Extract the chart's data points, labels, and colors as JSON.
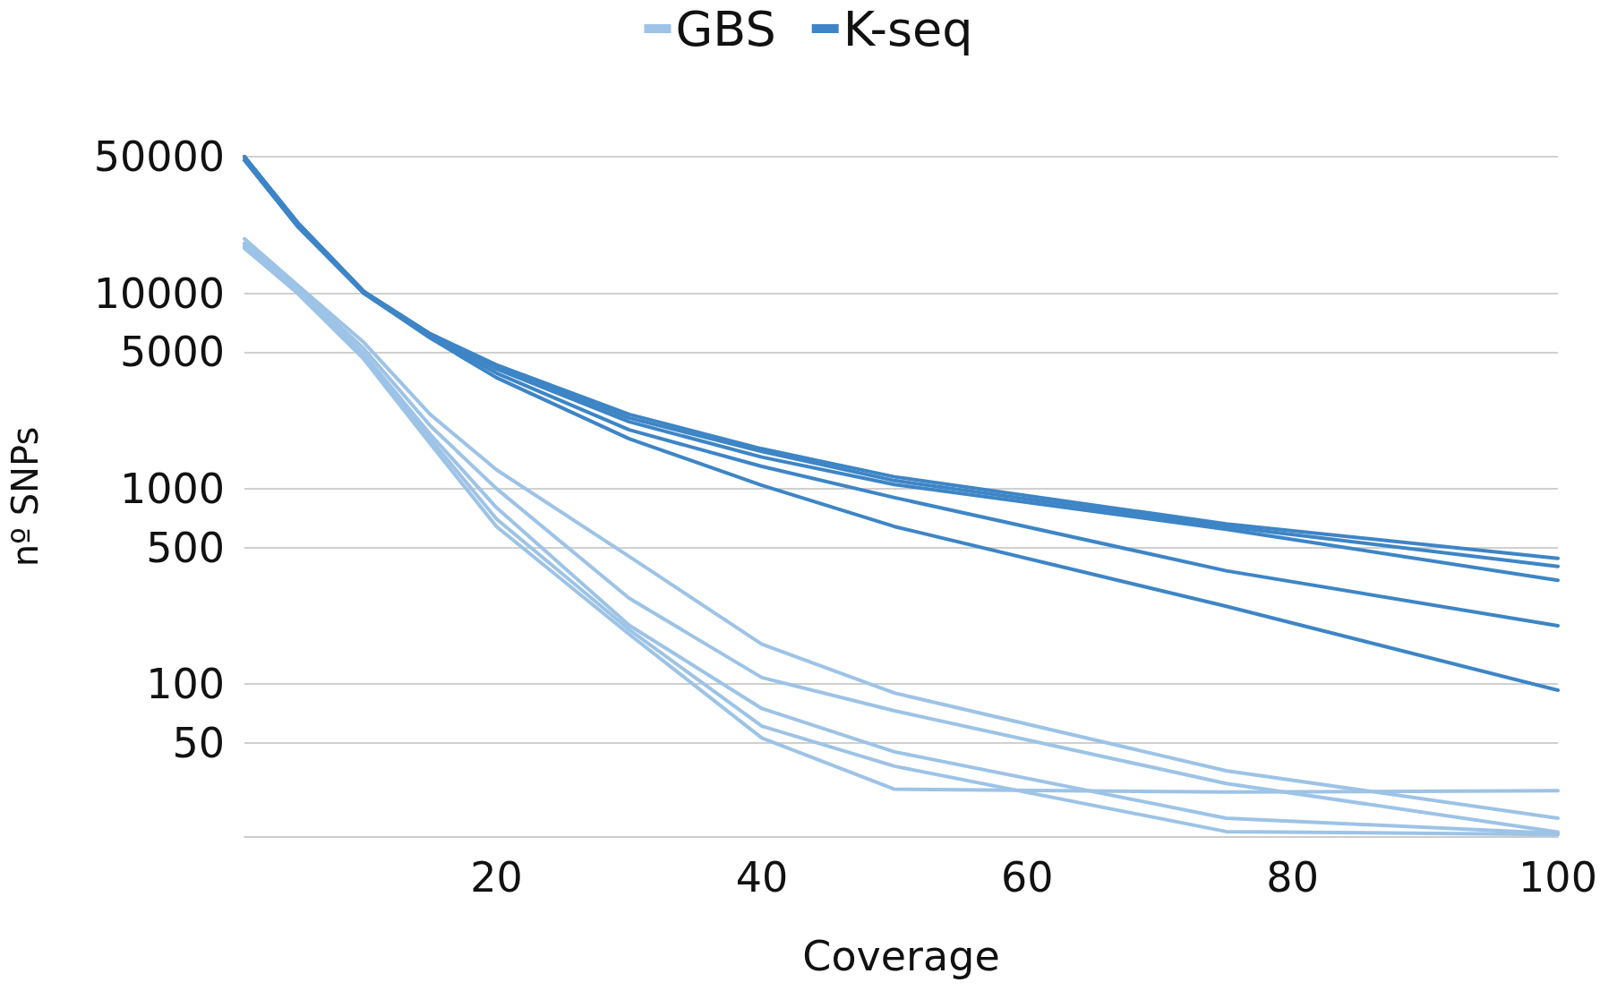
{
  "chart_data": {
    "type": "line",
    "xlabel": "Coverage",
    "ylabel": "nº SNPs",
    "x": [
      1,
      5,
      10,
      15,
      20,
      30,
      40,
      50,
      75,
      100
    ],
    "xlim": [
      1,
      100
    ],
    "xticks": [
      20,
      40,
      60,
      80,
      100
    ],
    "ylim": [
      16.5,
      50000
    ],
    "yticks": [
      50,
      100,
      500,
      1000,
      5000,
      10000,
      50000
    ],
    "log": "y",
    "grid": "y",
    "legend": "top",
    "marker": "none",
    "line_style": "solid",
    "series": [
      {
        "name": "GBS",
        "color": "#9dc3e6",
        "values": [
          19000,
          11000,
          5600,
          2400,
          1250,
          450,
          160,
          90,
          36,
          20.6
        ]
      },
      {
        "color": "#9dc3e6",
        "values": [
          18000,
          10800,
          5200,
          2100,
          1000,
          275,
          108,
          73,
          31,
          17.5
        ]
      },
      {
        "color": "#9dc3e6",
        "values": [
          17500,
          10500,
          4900,
          1900,
          800,
          200,
          75,
          45,
          20.6,
          17.2
        ]
      },
      {
        "color": "#9dc3e6",
        "values": [
          17000,
          10300,
          4700,
          1800,
          700,
          190,
          61,
          38,
          17.6,
          17
        ]
      },
      {
        "color": "#9dc3e6",
        "values": [
          17000,
          10000,
          4600,
          1700,
          640,
          180,
          53,
          29,
          28,
          28.5
        ]
      },
      {
        "name": "K-seq",
        "color": "#3d85c6",
        "values": [
          50000,
          23000,
          10200,
          6200,
          4300,
          2400,
          1600,
          1150,
          660,
          440
        ]
      },
      {
        "color": "#3d85c6",
        "values": [
          50000,
          23000,
          10200,
          6200,
          4200,
          2300,
          1550,
          1100,
          640,
          400
        ]
      },
      {
        "color": "#3d85c6",
        "values": [
          50000,
          23000,
          10200,
          6100,
          4100,
          2200,
          1450,
          1050,
          620,
          340
        ]
      },
      {
        "color": "#3d85c6",
        "values": [
          48000,
          22000,
          10000,
          6000,
          3900,
          2000,
          1300,
          900,
          380,
          199
        ]
      },
      {
        "color": "#3d85c6",
        "values": [
          48000,
          22000,
          10000,
          5900,
          3700,
          1800,
          1040,
          640,
          250,
          93
        ]
      }
    ]
  }
}
